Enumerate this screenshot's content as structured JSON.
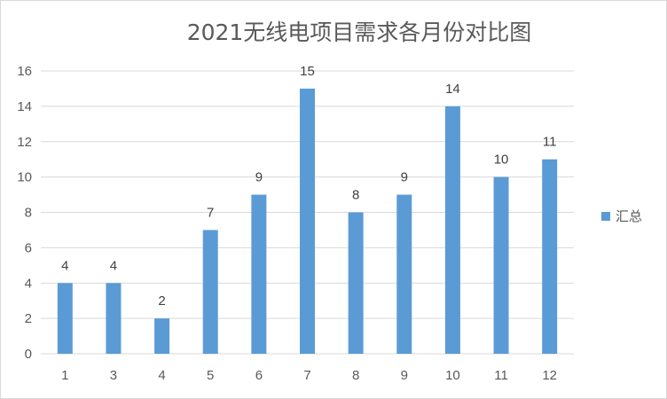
{
  "chart_data": {
    "type": "bar",
    "title": "2021无线电项目需求各月份对比图",
    "categories": [
      "1",
      "3",
      "4",
      "5",
      "6",
      "7",
      "8",
      "9",
      "10",
      "11",
      "12"
    ],
    "series": [
      {
        "name": "汇总",
        "values": [
          4,
          4,
          2,
          7,
          9,
          15,
          8,
          9,
          14,
          10,
          11
        ]
      }
    ],
    "ylim": [
      0,
      16
    ],
    "yticks": [
      0,
      2,
      4,
      6,
      8,
      10,
      12,
      14,
      16
    ],
    "grid": true,
    "legend": "right",
    "color": "#5b9bd5"
  }
}
